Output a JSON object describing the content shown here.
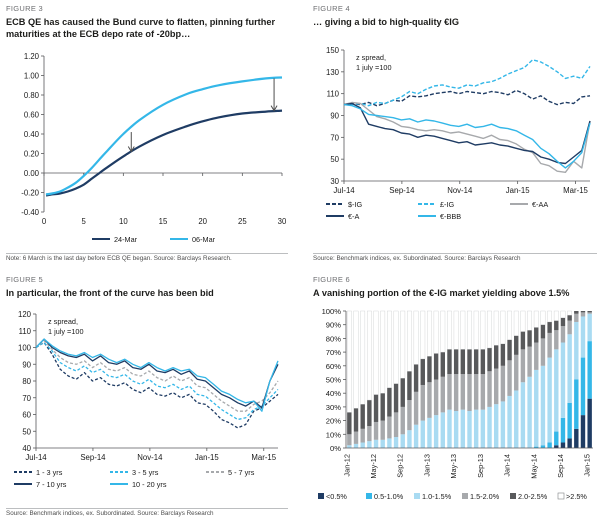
{
  "panels": {
    "fig3": {
      "label": "FIGURE 3",
      "title": "ECB QE has caused the Bund curve to flatten, pinning further maturities at the ECB depo rate of -20bp…",
      "note": "Note: 6 March is the last day before ECB QE began. Source: Barclays Research."
    },
    "fig4": {
      "label": "FIGURE 4",
      "title": "… giving a bid to high-quality €IG",
      "note": "Source: Benchmark indices, ex. Subordinated. Source: Barclays Research"
    },
    "fig5": {
      "label": "FIGURE 5",
      "title": "In particular, the front of the curve has been bid",
      "note": "Source: Benchmark indices, ex. Subordinated. Source: Barclays Research"
    },
    "fig6": {
      "label": "FIGURE 6",
      "title": "A vanishing portion of the €-IG market yielding above 1.5%",
      "note": ""
    }
  },
  "colors": {
    "dark": "#1f3c64",
    "light": "#34b7e8",
    "grey": "#a7a9ac",
    "mid": "#7f8184",
    "lightblue": "#a9dbf2",
    "darkgrey": "#58595b"
  },
  "chart_data": [
    {
      "id": "fig3",
      "type": "line",
      "xlabel": "",
      "ylabel": "",
      "xlim": [
        0,
        30
      ],
      "ylim": [
        -0.4,
        1.2
      ],
      "xticks": [
        "0",
        "5",
        "10",
        "15",
        "20",
        "25",
        "30"
      ],
      "yticks": [
        "-0.40",
        "-0.20",
        "0.00",
        "0.20",
        "0.40",
        "0.60",
        "0.80",
        "1.00",
        "1.20"
      ],
      "series": [
        {
          "name": "24-Mar",
          "color": "#1f3c64",
          "x": [
            0.25,
            1,
            2,
            3,
            4,
            5,
            6,
            7,
            8,
            10,
            12,
            15,
            18,
            20,
            22,
            25,
            28,
            30
          ],
          "y": [
            -0.23,
            -0.22,
            -0.21,
            -0.19,
            -0.16,
            -0.12,
            -0.06,
            0.0,
            0.06,
            0.17,
            0.27,
            0.39,
            0.48,
            0.53,
            0.57,
            0.61,
            0.63,
            0.64
          ]
        },
        {
          "name": "06-Mar",
          "color": "#34b7e8",
          "x": [
            0.25,
            1,
            2,
            3,
            4,
            5,
            6,
            7,
            8,
            10,
            12,
            15,
            18,
            20,
            22,
            25,
            28,
            30
          ],
          "y": [
            -0.22,
            -0.21,
            -0.19,
            -0.15,
            -0.1,
            -0.03,
            0.05,
            0.14,
            0.23,
            0.4,
            0.54,
            0.7,
            0.81,
            0.86,
            0.9,
            0.94,
            0.97,
            0.98
          ]
        }
      ],
      "arrows": [
        {
          "x": 11,
          "from": 0.42,
          "to": 0.22
        },
        {
          "x": 29,
          "from": 0.97,
          "to": 0.64
        }
      ],
      "grid": false,
      "legend": "bottom"
    },
    {
      "id": "fig4",
      "type": "line",
      "xlabel": "",
      "ylabel": "",
      "annotation": "z spread,\n1 july =100",
      "xlim": [
        0,
        8.5
      ],
      "ylim": [
        30,
        150
      ],
      "xticks": [
        {
          "label": "Jul-14",
          "x": 0
        },
        {
          "label": "Sep-14",
          "x": 2
        },
        {
          "label": "Nov-14",
          "x": 4
        },
        {
          "label": "Jan-15",
          "x": 6
        },
        {
          "label": "Mar-15",
          "x": 8
        }
      ],
      "yticks": [
        "30",
        "50",
        "70",
        "90",
        "110",
        "130",
        "150"
      ],
      "series": [
        {
          "name": "$-IG",
          "color": "#1f3c64",
          "dash": "4,2",
          "values": [
            100,
            101,
            100,
            102,
            99,
            101,
            104,
            103,
            108,
            107,
            108,
            110,
            111,
            112,
            110,
            112,
            111,
            110,
            112,
            111,
            109,
            113,
            110,
            105,
            108,
            103,
            100,
            102,
            101,
            107,
            108
          ]
        },
        {
          "name": "£-IG",
          "color": "#34b7e8",
          "dash": "4,2",
          "values": [
            100,
            100,
            101,
            99,
            102,
            101,
            104,
            107,
            112,
            110,
            114,
            117,
            118,
            116,
            115,
            118,
            117,
            120,
            121,
            124,
            128,
            131,
            134,
            141,
            139,
            135,
            130,
            124,
            126,
            124,
            135
          ]
        },
        {
          "name": "€-AA",
          "color": "#a7a9ac",
          "values": [
            100,
            102,
            101,
            95,
            89,
            87,
            84,
            80,
            79,
            77,
            76,
            77,
            76,
            74,
            75,
            73,
            71,
            69,
            72,
            68,
            67,
            64,
            59,
            56,
            46,
            44,
            39,
            38,
            48,
            42,
            85
          ]
        },
        {
          "name": "€-A",
          "color": "#1f3c64",
          "values": [
            100,
            101,
            97,
            82,
            80,
            78,
            77,
            74,
            73,
            70,
            72,
            71,
            69,
            67,
            65,
            66,
            63,
            64,
            65,
            63,
            62,
            60,
            58,
            57,
            52,
            50,
            47,
            46,
            52,
            58,
            85
          ]
        },
        {
          "name": "€-BBB",
          "color": "#34b7e8",
          "values": [
            100,
            99,
            96,
            91,
            90,
            89,
            88,
            86,
            87,
            84,
            86,
            85,
            83,
            81,
            80,
            82,
            79,
            80,
            82,
            79,
            78,
            76,
            72,
            68,
            60,
            55,
            48,
            42,
            48,
            56,
            83
          ]
        }
      ],
      "grid": false,
      "legend": "bottom"
    },
    {
      "id": "fig5",
      "type": "line",
      "xlabel": "",
      "ylabel": "",
      "annotation": "z spread,\n1 july =100",
      "xlim": [
        0,
        8.5
      ],
      "ylim": [
        40,
        120
      ],
      "xticks": [
        {
          "label": "Jul-14",
          "x": 0
        },
        {
          "label": "Sep-14",
          "x": 2
        },
        {
          "label": "Nov-14",
          "x": 4
        },
        {
          "label": "Jan-15",
          "x": 6
        },
        {
          "label": "Mar-15",
          "x": 8
        }
      ],
      "yticks": [
        "40",
        "50",
        "60",
        "70",
        "80",
        "90",
        "100",
        "110",
        "120"
      ],
      "series": [
        {
          "name": "1 - 3 yrs",
          "color": "#1f3c64",
          "dash": "3,2",
          "values": [
            100,
            103,
            96,
            87,
            83,
            81,
            85,
            80,
            82,
            78,
            77,
            79,
            75,
            73,
            76,
            72,
            71,
            73,
            70,
            72,
            67,
            66,
            62,
            57,
            55,
            52,
            54,
            62,
            64,
            68,
            72
          ]
        },
        {
          "name": "3 - 5 yrs",
          "color": "#34b7e8",
          "dash": "3,2",
          "values": [
            100,
            103,
            98,
            91,
            88,
            86,
            89,
            85,
            87,
            83,
            82,
            84,
            80,
            78,
            81,
            77,
            76,
            78,
            75,
            77,
            72,
            71,
            67,
            63,
            60,
            57,
            58,
            63,
            65,
            70,
            75
          ]
        },
        {
          "name": "5 - 7 yrs",
          "color": "#a7a9ac",
          "dash": "3,2",
          "values": [
            100,
            104,
            99,
            94,
            91,
            90,
            92,
            88,
            91,
            87,
            86,
            88,
            84,
            83,
            86,
            82,
            80,
            83,
            80,
            82,
            77,
            76,
            72,
            68,
            65,
            62,
            62,
            66,
            68,
            73,
            80
          ]
        },
        {
          "name": "7 - 10 yrs",
          "color": "#1f3c64",
          "values": [
            100,
            105,
            100,
            97,
            95,
            94,
            96,
            92,
            95,
            91,
            90,
            92,
            88,
            87,
            90,
            86,
            85,
            87,
            84,
            86,
            81,
            80,
            76,
            72,
            70,
            67,
            65,
            68,
            64,
            80,
            90
          ]
        },
        {
          "name": "10 - 20 yrs",
          "color": "#34b7e8",
          "values": [
            100,
            105,
            101,
            98,
            96,
            95,
            97,
            94,
            96,
            93,
            91,
            93,
            90,
            88,
            91,
            88,
            86,
            88,
            86,
            87,
            83,
            82,
            78,
            74,
            72,
            69,
            67,
            68,
            62,
            80,
            92
          ]
        }
      ],
      "grid": false,
      "legend": "bottom"
    },
    {
      "id": "fig6",
      "type": "bar",
      "stacked": true,
      "xlabel": "",
      "ylabel": "",
      "ylim": [
        0,
        100
      ],
      "yticks": [
        "0%",
        "10%",
        "20%",
        "30%",
        "40%",
        "50%",
        "60%",
        "70%",
        "80%",
        "90%",
        "100%"
      ],
      "xticks": [
        "Jan-12",
        "May-12",
        "Sep-12",
        "Jan-13",
        "May-13",
        "Sep-13",
        "Jan-14",
        "May-14",
        "Sep-14",
        "Jan-15"
      ],
      "categories_count": 37,
      "series": [
        {
          "name": "<0.5%",
          "color": "#1f3c64",
          "values": [
            0,
            0,
            0,
            0,
            0,
            0,
            0,
            0,
            0,
            0,
            0,
            0,
            0,
            0,
            0,
            0,
            0,
            0,
            0,
            0,
            0,
            0,
            0,
            0,
            0,
            0,
            0,
            0,
            0,
            0,
            0,
            2,
            4,
            7,
            14,
            24,
            36
          ]
        },
        {
          "name": "0.5-1.0%",
          "color": "#34b7e8",
          "values": [
            0,
            0,
            0,
            0,
            0,
            0,
            0,
            0,
            0,
            0,
            0,
            0,
            0,
            0,
            0,
            0,
            0,
            0,
            0,
            0,
            0,
            0,
            0,
            0,
            0,
            0,
            0,
            0,
            1,
            2,
            4,
            10,
            18,
            26,
            36,
            42,
            42
          ]
        },
        {
          "name": "1.0-1.5%",
          "color": "#a9dbf2",
          "values": [
            2,
            3,
            4,
            5,
            6,
            6,
            7,
            8,
            10,
            13,
            17,
            20,
            22,
            24,
            26,
            28,
            27,
            28,
            27,
            28,
            28,
            30,
            32,
            34,
            38,
            42,
            48,
            52,
            56,
            58,
            62,
            60,
            55,
            50,
            42,
            30,
            20
          ]
        },
        {
          "name": "1.5-2.0%",
          "color": "#a7a9ac",
          "values": [
            8,
            9,
            10,
            11,
            13,
            14,
            16,
            18,
            20,
            22,
            24,
            26,
            26,
            26,
            26,
            26,
            27,
            26,
            27,
            26,
            26,
            26,
            26,
            26,
            26,
            26,
            24,
            22,
            20,
            20,
            18,
            14,
            12,
            10,
            6,
            3,
            1
          ]
        },
        {
          "name": "2.0-2.5%",
          "color": "#58595b",
          "values": [
            16,
            17,
            18,
            19,
            20,
            20,
            21,
            21,
            21,
            21,
            20,
            19,
            19,
            19,
            18,
            18,
            18,
            18,
            18,
            18,
            18,
            17,
            17,
            16,
            15,
            14,
            13,
            12,
            11,
            10,
            8,
            7,
            6,
            4,
            2,
            1,
            1
          ]
        },
        {
          "name": ">2.5%",
          "color": "#ffffff",
          "values": [
            74,
            71,
            68,
            65,
            61,
            60,
            56,
            53,
            49,
            44,
            39,
            35,
            33,
            31,
            30,
            28,
            28,
            28,
            28,
            28,
            28,
            27,
            25,
            24,
            21,
            18,
            15,
            14,
            12,
            10,
            8,
            7,
            5,
            3,
            0,
            0,
            0
          ]
        }
      ],
      "grid": false,
      "legend": "bottom"
    }
  ]
}
